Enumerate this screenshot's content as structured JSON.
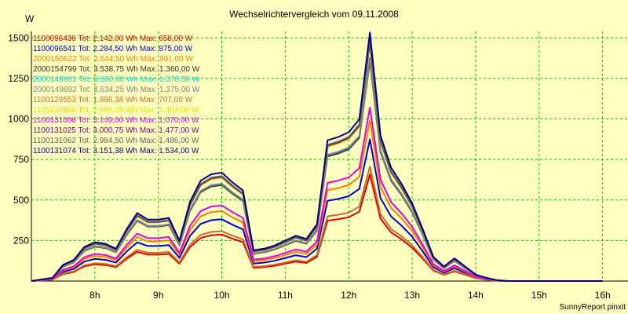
{
  "chart_data": {
    "type": "line",
    "title": "Wechselrichtervergleich vom 09.11.2008",
    "ylabel": "W",
    "footer": "SunnyReport pinxit",
    "ylim": [
      0,
      1540
    ],
    "xlim": [
      7.0,
      16.4
    ],
    "yticks": [
      250,
      500,
      750,
      1000,
      1250,
      1500
    ],
    "xticks": [
      {
        "value": 8,
        "label": "8h"
      },
      {
        "value": 9,
        "label": "9h"
      },
      {
        "value": 10,
        "label": "10h"
      },
      {
        "value": 11,
        "label": "11h"
      },
      {
        "value": 12,
        "label": "12h"
      },
      {
        "value": 13,
        "label": "13h"
      },
      {
        "value": 14,
        "label": "14h"
      },
      {
        "value": 15,
        "label": "15h"
      },
      {
        "value": 16,
        "label": "16h"
      }
    ],
    "grid": true,
    "x": [
      7.0,
      7.333,
      7.5,
      7.667,
      7.833,
      8.0,
      8.167,
      8.333,
      8.5,
      8.667,
      8.833,
      9.0,
      9.167,
      9.333,
      9.5,
      9.667,
      9.833,
      10.0,
      10.167,
      10.333,
      10.5,
      10.667,
      10.833,
      11.0,
      11.167,
      11.333,
      11.5,
      11.667,
      11.833,
      12.0,
      12.167,
      12.333,
      12.5,
      12.667,
      12.833,
      13.0,
      13.167,
      13.333,
      13.5,
      13.667,
      13.833,
      14.0,
      14.167,
      14.333,
      14.5,
      14.667,
      14.833,
      15.0,
      15.167,
      15.333,
      15.5,
      15.667,
      15.833,
      16.0
    ],
    "series": [
      {
        "label": "1100096436 Tot: 2.142,00 Wh Max: 658,00 W",
        "color": "#e00000",
        "scale": 0.428
      },
      {
        "label": "1100096541 Tot: 2.284,50 Wh Max: 875,00 W",
        "color": "#0000d0",
        "scale": 0.569
      },
      {
        "label": "2000150622 Tot: 2.544,50 Wh Max: 991,00 W",
        "color": "#f08000",
        "scale": 0.644
      },
      {
        "label": "2000154799 Tot: 3.538,75 Wh Max: 1.360,00 W",
        "color": "#303030",
        "scale": 0.884
      },
      {
        "label": "2000149801 Tot: 3.660,00 Wh Max: 1.378,00 W",
        "color": "#00d8e8",
        "scale": 0.896
      },
      {
        "label": "2000149892 Tot: 3.634,25 Wh Max: 1.375,00 W",
        "color": "#808080",
        "scale": 0.894
      },
      {
        "label": "1100129553 Tot: 1.886,38 Wh Max: 707,00 W",
        "color": "#c07030",
        "scale": 0.459
      },
      {
        "label": "1100130866 Tot: 2.966,25 Wh Max: 1.463,00 W",
        "color": "#e0e000",
        "scale": 0.951
      },
      {
        "label": "1100131006 Tot: 3.149,00 Wh Max: 1.070,00 W",
        "color": "#e000e0",
        "scale": 0.696
      },
      {
        "label": "1100131025 Tot: 3.000,75 Wh Max: 1.477,00 W",
        "color": "#800080",
        "scale": 0.96
      },
      {
        "label": "1100131062 Tot: 2.984,50 Wh Max: 1.486,00 W",
        "color": "#606060",
        "scale": 0.966
      },
      {
        "label": "1100131074 Tot: 3.151,38 Wh Max: 1.534,00 W",
        "color": "#000080",
        "scale": 0.998
      }
    ],
    "base_profile": [
      0,
      20,
      100,
      130,
      210,
      240,
      230,
      200,
      320,
      420,
      380,
      380,
      390,
      250,
      490,
      620,
      660,
      670,
      610,
      560,
      190,
      200,
      220,
      250,
      280,
      260,
      350,
      870,
      890,
      920,
      1000,
      1537,
      900,
      700,
      600,
      480,
      320,
      150,
      90,
      140,
      90,
      40,
      20,
      5,
      0,
      0,
      0,
      0,
      0,
      0,
      0,
      0,
      0,
      0
    ]
  }
}
